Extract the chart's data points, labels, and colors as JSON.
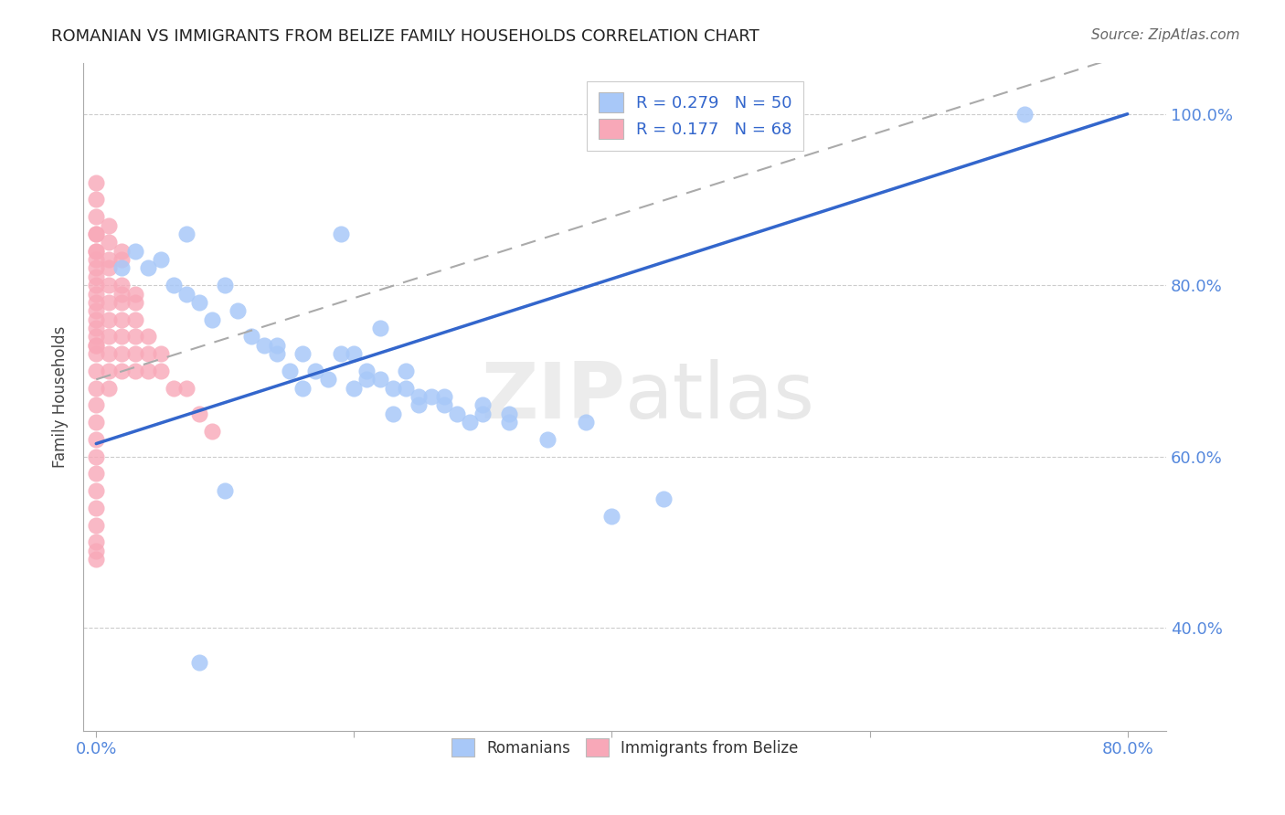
{
  "title": "ROMANIAN VS IMMIGRANTS FROM BELIZE FAMILY HOUSEHOLDS CORRELATION CHART",
  "source": "Source: ZipAtlas.com",
  "ylabel": "Family Households",
  "blue_color": "#A8C8F8",
  "pink_color": "#F8A8B8",
  "trendline_blue_color": "#3366CC",
  "trendline_pink_color": "#AAAAAA",
  "watermark_zip": "ZIP",
  "watermark_atlas": "atlas",
  "legend_label1": "R = 0.279   N = 50",
  "legend_label2": "R = 0.177   N = 68",
  "bottom_legend1": "Romanians",
  "bottom_legend2": "Immigrants from Belize",
  "blue_trend_x0": 0.0,
  "blue_trend_y0": 0.615,
  "blue_trend_x1": 0.8,
  "blue_trend_y1": 1.0,
  "pink_trend_x0": 0.0,
  "pink_trend_y0": 0.69,
  "pink_trend_x1": 0.8,
  "pink_trend_y1": 1.07,
  "xlim_min": -0.01,
  "xlim_max": 0.83,
  "ylim_min": 0.28,
  "ylim_max": 1.06,
  "yticks": [
    0.4,
    0.6,
    0.8,
    1.0
  ],
  "ytick_labels": [
    "40.0%",
    "60.0%",
    "80.0%",
    "100.0%"
  ],
  "xtick_positions": [
    0.0,
    0.2,
    0.4,
    0.6,
    0.8
  ],
  "xtick_labels": [
    "0.0%",
    "",
    "",
    "",
    "80.0%"
  ],
  "blue_x": [
    0.02,
    0.03,
    0.04,
    0.05,
    0.06,
    0.07,
    0.08,
    0.09,
    0.1,
    0.11,
    0.12,
    0.13,
    0.14,
    0.15,
    0.16,
    0.17,
    0.18,
    0.19,
    0.2,
    0.21,
    0.22,
    0.23,
    0.24,
    0.25,
    0.27,
    0.28,
    0.29,
    0.3,
    0.32,
    0.35,
    0.38,
    0.4,
    0.44,
    0.1,
    0.08,
    0.07,
    0.22,
    0.24,
    0.25,
    0.27,
    0.3,
    0.32,
    0.14,
    0.16,
    0.19,
    0.21,
    0.23,
    0.26,
    0.2,
    0.72
  ],
  "blue_y": [
    0.82,
    0.84,
    0.82,
    0.83,
    0.8,
    0.79,
    0.78,
    0.76,
    0.8,
    0.77,
    0.74,
    0.73,
    0.72,
    0.7,
    0.72,
    0.7,
    0.69,
    0.86,
    0.72,
    0.7,
    0.69,
    0.68,
    0.68,
    0.66,
    0.66,
    0.65,
    0.64,
    0.66,
    0.64,
    0.62,
    0.64,
    0.53,
    0.55,
    0.56,
    0.36,
    0.86,
    0.75,
    0.7,
    0.67,
    0.67,
    0.65,
    0.65,
    0.73,
    0.68,
    0.72,
    0.69,
    0.65,
    0.67,
    0.68,
    1.0
  ],
  "pink_x": [
    0.0,
    0.0,
    0.0,
    0.0,
    0.0,
    0.0,
    0.0,
    0.0,
    0.0,
    0.0,
    0.0,
    0.0,
    0.0,
    0.0,
    0.0,
    0.0,
    0.0,
    0.0,
    0.0,
    0.0,
    0.01,
    0.01,
    0.01,
    0.01,
    0.01,
    0.01,
    0.01,
    0.01,
    0.01,
    0.02,
    0.02,
    0.02,
    0.02,
    0.02,
    0.02,
    0.02,
    0.03,
    0.03,
    0.03,
    0.03,
    0.03,
    0.04,
    0.04,
    0.04,
    0.05,
    0.05,
    0.06,
    0.07,
    0.08,
    0.09,
    0.0,
    0.0,
    0.0,
    0.0,
    0.0,
    0.0,
    0.0,
    0.0,
    0.0,
    0.0,
    0.01,
    0.01,
    0.02,
    0.02,
    0.03,
    0.0,
    0.0,
    0.0
  ],
  "pink_y": [
    0.88,
    0.86,
    0.84,
    0.82,
    0.8,
    0.78,
    0.76,
    0.74,
    0.73,
    0.72,
    0.7,
    0.68,
    0.66,
    0.64,
    0.62,
    0.6,
    0.58,
    0.56,
    0.54,
    0.52,
    0.85,
    0.82,
    0.8,
    0.78,
    0.76,
    0.74,
    0.72,
    0.7,
    0.68,
    0.83,
    0.8,
    0.78,
    0.76,
    0.74,
    0.72,
    0.7,
    0.78,
    0.76,
    0.74,
    0.72,
    0.7,
    0.74,
    0.72,
    0.7,
    0.72,
    0.7,
    0.68,
    0.68,
    0.65,
    0.63,
    0.5,
    0.48,
    0.86,
    0.84,
    0.83,
    0.81,
    0.79,
    0.77,
    0.75,
    0.73,
    0.87,
    0.83,
    0.84,
    0.79,
    0.79,
    0.92,
    0.9,
    0.49
  ]
}
